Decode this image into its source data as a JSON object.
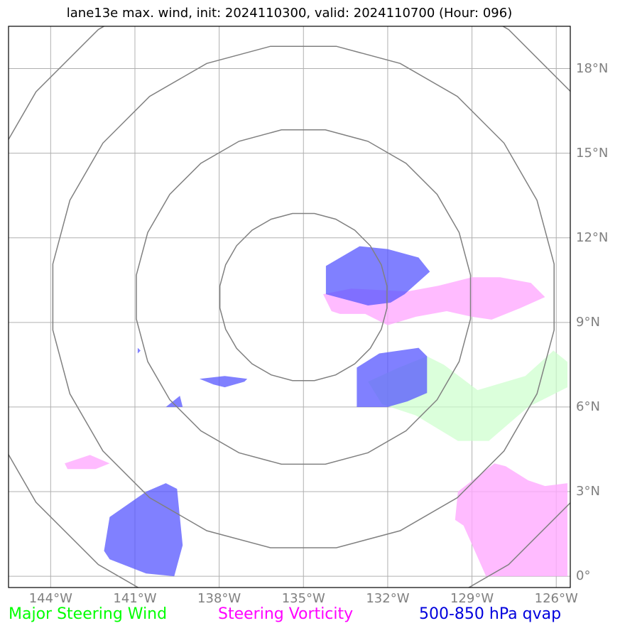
{
  "title": "lane13e max. wind, init: 2024110300, valid: 2024110700 (Hour: 096)",
  "map": {
    "lon_range": [
      -145.5,
      -125.5
    ],
    "lat_range": [
      -0.4,
      19.5
    ],
    "lon_ticks": [
      {
        "value": -144,
        "label": "144°W"
      },
      {
        "value": -141,
        "label": "141°W"
      },
      {
        "value": -138,
        "label": "138°W"
      },
      {
        "value": -135,
        "label": "135°W"
      },
      {
        "value": -132,
        "label": "132°W"
      },
      {
        "value": -129,
        "label": "129°W"
      },
      {
        "value": -126,
        "label": "126°W"
      }
    ],
    "lat_ticks": [
      {
        "value": 0,
        "label": "0°"
      },
      {
        "value": 3,
        "label": "3°N"
      },
      {
        "value": 6,
        "label": "6°N"
      },
      {
        "value": 9,
        "label": "9°N"
      },
      {
        "value": 12,
        "label": "12°N"
      },
      {
        "value": 15,
        "label": "15°N"
      },
      {
        "value": 18,
        "label": "18°N"
      }
    ],
    "range_rings": {
      "center": {
        "lon": -135,
        "lat": 9.9
      },
      "radii_deg": [
        3,
        6,
        9,
        12
      ]
    },
    "layers": {
      "steering_wind": {
        "color": "#ccffcc",
        "polygons": [
          [
            [
              -132.7,
              6.9
            ],
            [
              -131.6,
              7.4
            ],
            [
              -130.6,
              7.8
            ],
            [
              -130.0,
              7.5
            ],
            [
              -129.6,
              7.2
            ],
            [
              -128.8,
              6.6
            ],
            [
              -127.1,
              7.1
            ],
            [
              -126.1,
              8.0
            ],
            [
              -125.6,
              7.6
            ],
            [
              -125.6,
              6.7
            ],
            [
              -127.0,
              6.0
            ],
            [
              -128.4,
              4.8
            ],
            [
              -129.5,
              4.8
            ],
            [
              -131.0,
              5.7
            ],
            [
              -132.2,
              6.1
            ]
          ]
        ]
      },
      "steering_vorticity": {
        "color": "#ffaaff",
        "polygons": [
          [
            [
              -134.3,
              10.0
            ],
            [
              -133.3,
              10.2
            ],
            [
              -131.3,
              10.1
            ],
            [
              -130.2,
              10.3
            ],
            [
              -129.0,
              10.6
            ],
            [
              -128.0,
              10.6
            ],
            [
              -126.9,
              10.4
            ],
            [
              -126.4,
              9.9
            ],
            [
              -127.3,
              9.5
            ],
            [
              -128.3,
              9.1
            ],
            [
              -129.0,
              9.2
            ],
            [
              -129.9,
              9.4
            ],
            [
              -131.0,
              9.2
            ],
            [
              -132.0,
              8.9
            ],
            [
              -132.8,
              9.3
            ],
            [
              -133.7,
              9.3
            ],
            [
              -134.0,
              9.4
            ]
          ],
          [
            [
              -143.5,
              4.0
            ],
            [
              -142.6,
              4.3
            ],
            [
              -141.9,
              4.0
            ],
            [
              -142.4,
              3.8
            ],
            [
              -143.4,
              3.8
            ]
          ],
          [
            [
              -129.5,
              3.0
            ],
            [
              -128.2,
              4.0
            ],
            [
              -127.8,
              3.9
            ],
            [
              -127.0,
              3.4
            ],
            [
              -126.4,
              3.2
            ],
            [
              -125.6,
              3.3
            ],
            [
              -125.6,
              0.0
            ],
            [
              -128.5,
              0.0
            ],
            [
              -129.3,
              1.8
            ],
            [
              -129.6,
              2.0
            ]
          ]
        ]
      },
      "qvap": {
        "color": "#5555ff",
        "polygons": [
          [
            [
              -134.2,
              11.0
            ],
            [
              -133.0,
              11.7
            ],
            [
              -132.0,
              11.6
            ],
            [
              -130.9,
              11.3
            ],
            [
              -130.5,
              10.8
            ],
            [
              -131.4,
              10.0
            ],
            [
              -131.9,
              9.7
            ],
            [
              -132.7,
              9.6
            ],
            [
              -134.2,
              10.0
            ]
          ],
          [
            [
              -133.1,
              7.4
            ],
            [
              -132.3,
              7.9
            ],
            [
              -130.9,
              8.1
            ],
            [
              -130.6,
              7.8
            ],
            [
              -130.6,
              6.5
            ],
            [
              -131.3,
              6.2
            ],
            [
              -132.0,
              6.0
            ],
            [
              -133.1,
              6.0
            ]
          ],
          [
            [
              -141.9,
              2.1
            ],
            [
              -140.6,
              3.0
            ],
            [
              -139.9,
              3.3
            ],
            [
              -139.5,
              3.1
            ],
            [
              -139.3,
              1.1
            ],
            [
              -139.6,
              0.0
            ],
            [
              -140.6,
              0.1
            ],
            [
              -141.9,
              0.6
            ],
            [
              -142.1,
              0.9
            ]
          ],
          [
            [
              -138.7,
              7.0
            ],
            [
              -137.8,
              7.1
            ],
            [
              -137.0,
              7.0
            ],
            [
              -137.1,
              6.9
            ],
            [
              -137.8,
              6.7
            ],
            [
              -138.2,
              6.8
            ]
          ],
          [
            [
              -139.4,
              6.4
            ],
            [
              -139.3,
              6.0
            ],
            [
              -139.9,
              6.0
            ]
          ],
          [
            [
              -140.9,
              8.1
            ],
            [
              -140.8,
              8.0
            ],
            [
              -140.9,
              7.9
            ]
          ]
        ]
      }
    }
  },
  "legend": {
    "steering_wind": {
      "label": "Major Steering Wind",
      "color": "#00ff00"
    },
    "steering_vorticity": {
      "label": "Steering Vorticity",
      "color": "#ff00ff"
    },
    "qvap": {
      "label": "500-850 hPa qvap",
      "color": "#0000dd"
    }
  }
}
